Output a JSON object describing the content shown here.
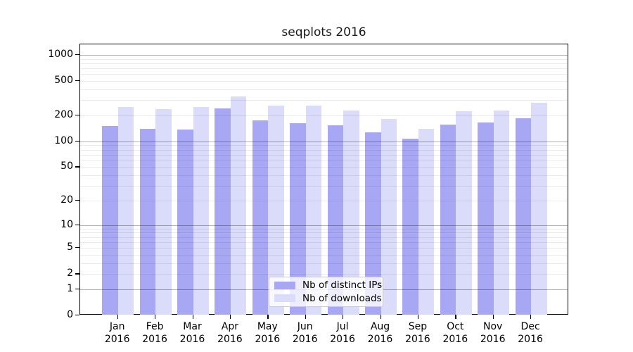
{
  "title": "seqplots 2016",
  "chart_data": {
    "type": "bar",
    "categories": [
      "Jan",
      "Feb",
      "Mar",
      "Apr",
      "May",
      "Jun",
      "Jul",
      "Aug",
      "Sep",
      "Oct",
      "Nov",
      "Dec"
    ],
    "year_label": "2016",
    "series": [
      {
        "name": "Nb of distinct IPs",
        "color": "#a7a7f3",
        "values": [
          150,
          140,
          138,
          240,
          175,
          162,
          153,
          127,
          107,
          156,
          165,
          184
        ]
      },
      {
        "name": "Nb of downloads",
        "color": "#dbdbfa",
        "values": [
          250,
          235,
          252,
          330,
          260,
          260,
          228,
          182,
          140,
          226,
          230,
          278
        ]
      }
    ],
    "y_ticks": [
      0,
      1,
      2,
      5,
      10,
      20,
      50,
      100,
      200,
      500,
      1000
    ],
    "scale": "log10(v+1)",
    "ylim": [
      0,
      1300
    ],
    "xlabel": "",
    "ylabel": "",
    "grid": "horizontal major+minor",
    "legend_position": "lower center",
    "colors": {
      "background": "#ffffff",
      "major_grid": "rgba(0,0,0,0.30)",
      "minor_grid": "rgba(0,0,0,0.08)"
    }
  }
}
